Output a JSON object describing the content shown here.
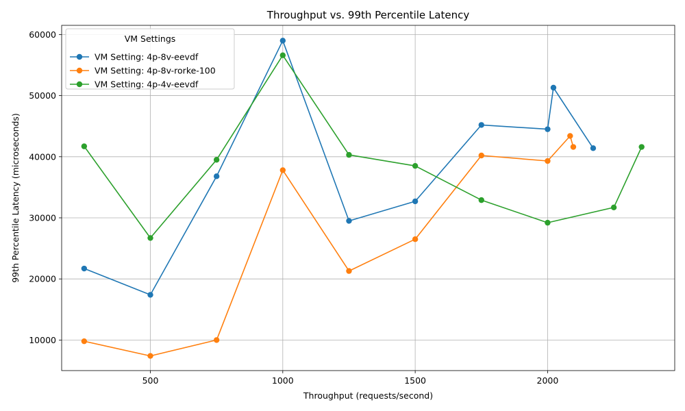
{
  "chart_data": {
    "type": "line",
    "title": "Throughput vs. 99th Percentile Latency",
    "xlabel": "Throughput (requests/second)",
    "ylabel": "99th Percentile Latency (microseconds)",
    "xlim": [
      165,
      2480
    ],
    "ylim": [
      5000,
      61500
    ],
    "xticks": [
      500,
      1000,
      1500,
      2000
    ],
    "yticks": [
      10000,
      20000,
      30000,
      40000,
      50000,
      60000
    ],
    "grid": true,
    "legend": {
      "title": "VM Settings",
      "placement": "top-left"
    },
    "series": [
      {
        "name": "VM Setting: 4p-8v-eevdf",
        "color": "#1f77b4",
        "x": [
          250,
          500,
          750,
          1000,
          1250,
          1500,
          1750,
          2000,
          2022,
          2172
        ],
        "y": [
          21700,
          17400,
          36800,
          59000,
          29500,
          32700,
          45200,
          44500,
          51300,
          41400
        ]
      },
      {
        "name": "VM Setting: 4p-8v-rorke-100",
        "color": "#ff7f0e",
        "x": [
          250,
          500,
          750,
          1000,
          1250,
          1500,
          1750,
          2000,
          2085,
          2097
        ],
        "y": [
          9800,
          7400,
          10000,
          37800,
          21300,
          26500,
          40200,
          39300,
          43400,
          41600
        ]
      },
      {
        "name": "VM Setting: 4p-4v-eevdf",
        "color": "#2ca02c",
        "x": [
          250,
          500,
          750,
          1000,
          1250,
          1500,
          1750,
          2000,
          2250,
          2355
        ],
        "y": [
          41700,
          26700,
          39500,
          56600,
          40300,
          38500,
          32900,
          29200,
          31700,
          41600
        ]
      }
    ]
  }
}
